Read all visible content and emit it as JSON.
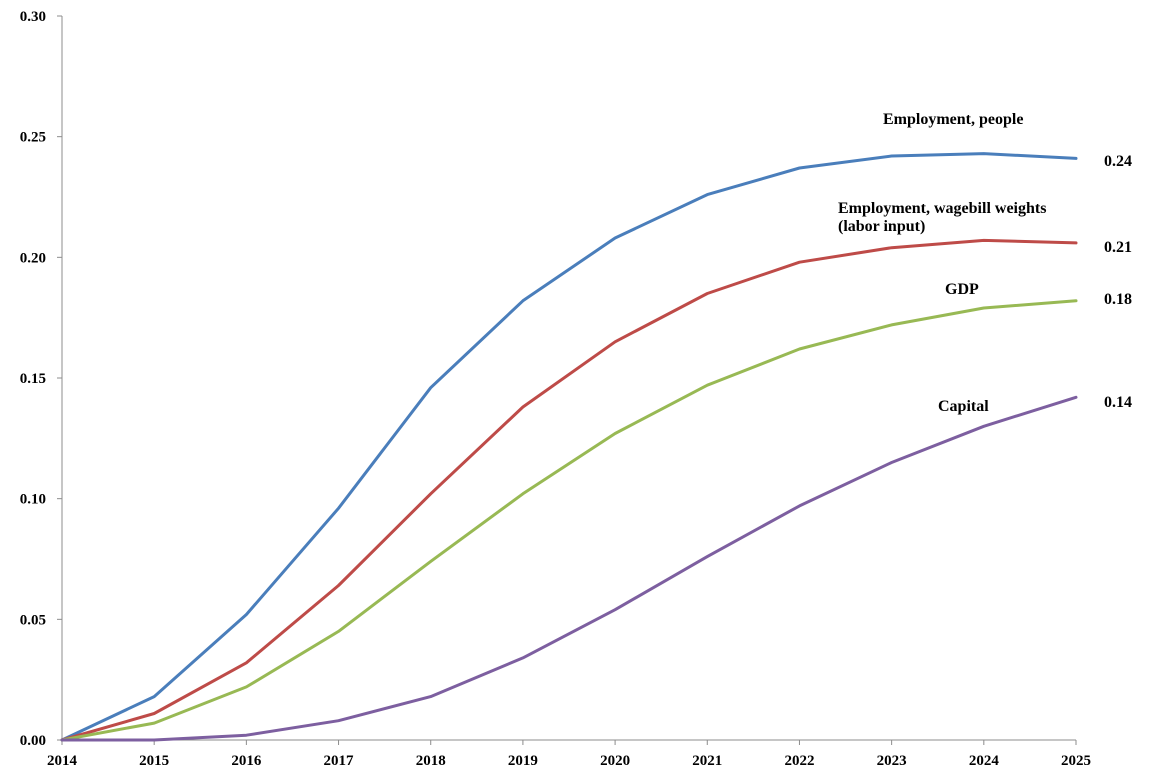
{
  "chart_data": {
    "type": "line",
    "title": "",
    "xlabel": "",
    "ylabel": "",
    "x": [
      "2014",
      "2015",
      "2016",
      "2017",
      "2018",
      "2019",
      "2020",
      "2021",
      "2022",
      "2023",
      "2024",
      "2025"
    ],
    "ylim": [
      0,
      0.3
    ],
    "yticks": [
      "0.00",
      "0.05",
      "0.10",
      "0.15",
      "0.20",
      "0.25",
      "0.30"
    ],
    "grid": false,
    "legend": "none",
    "series": [
      {
        "name": "Employment, people",
        "label_lines": [
          "Employment, people"
        ],
        "end_label": "0.24",
        "color": "#4a7ebb",
        "values": [
          0.0,
          0.018,
          0.052,
          0.096,
          0.146,
          0.182,
          0.208,
          0.226,
          0.237,
          0.242,
          0.243,
          0.241
        ]
      },
      {
        "name": "Employment, wagebill weights (labor input)",
        "label_lines": [
          "Employment, wagebill weights",
          "(labor input)"
        ],
        "end_label": "0.21",
        "color": "#be4b48",
        "values": [
          0.0,
          0.011,
          0.032,
          0.064,
          0.102,
          0.138,
          0.165,
          0.185,
          0.198,
          0.204,
          0.207,
          0.206
        ]
      },
      {
        "name": "GDP",
        "label_lines": [
          "GDP"
        ],
        "end_label": "0.18",
        "color": "#98b954",
        "values": [
          0.0,
          0.007,
          0.022,
          0.045,
          0.074,
          0.102,
          0.127,
          0.147,
          0.162,
          0.172,
          0.179,
          0.182
        ]
      },
      {
        "name": "Capital",
        "label_lines": [
          "Capital"
        ],
        "end_label": "0.14",
        "color": "#7d5fa0",
        "values": [
          0.0,
          0.0,
          0.002,
          0.008,
          0.018,
          0.034,
          0.054,
          0.076,
          0.097,
          0.115,
          0.13,
          0.142
        ]
      }
    ]
  }
}
